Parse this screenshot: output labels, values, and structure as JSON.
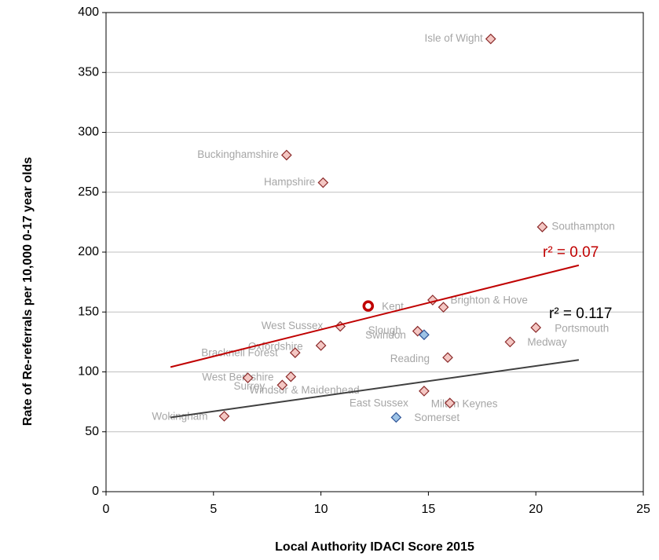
{
  "chart_data": {
    "type": "scatter",
    "xlabel": "Local Authority IDACI Score 2015",
    "ylabel": "Rate of Re-referrals per 10,000 0-17 year olds",
    "xlim": [
      0,
      25
    ],
    "xticks": [
      0,
      5,
      10,
      15,
      20,
      25
    ],
    "ylim": [
      0,
      400
    ],
    "yticks": [
      0,
      50,
      100,
      150,
      200,
      250,
      300,
      350,
      400
    ],
    "grid": true,
    "series": [
      {
        "marker": "diamond",
        "color": "#f4c7c3",
        "edge": "#8b2a2a",
        "labels": [
          "Isle of Wight",
          "Buckinghamshire",
          "Hampshire",
          "Southampton",
          "Kent",
          "Brighton & Hove",
          "West Sussex",
          "Slough",
          "Portsmouth",
          "Oxfordshire",
          "Bracknell Forest",
          "Medway",
          "Reading",
          "West Berkshire",
          "Surrey",
          "Windsor & Maidenhead",
          "East Sussex",
          "Milton Keynes",
          "Wokingham"
        ],
        "x": [
          17.9,
          8.4,
          10.1,
          20.3,
          15.2,
          15.7,
          10.9,
          14.5,
          20.0,
          10.0,
          8.8,
          18.8,
          15.9,
          6.6,
          8.6,
          8.2,
          14.8,
          16.0,
          5.5
        ],
        "values": [
          378,
          281,
          258,
          221,
          160,
          154,
          138,
          134,
          137,
          122,
          116,
          125,
          112,
          95,
          96,
          89,
          84,
          74,
          63
        ]
      },
      {
        "marker": "diamond",
        "color": "#9dc3e6",
        "edge": "#2f5597",
        "labels": [
          "Swindon",
          "Somerset"
        ],
        "x": [
          14.8,
          13.5
        ],
        "values": [
          131,
          62
        ]
      },
      {
        "marker": "circle",
        "color": "#c00000",
        "x": [
          12.2
        ],
        "values": [
          155
        ]
      },
      {
        "line": true,
        "color": "#c00000",
        "x": [
          3,
          22
        ],
        "values": [
          104,
          189
        ]
      },
      {
        "line": true,
        "color": "#404040",
        "x": [
          3,
          22
        ],
        "values": [
          62,
          110
        ]
      }
    ],
    "annotations": [
      {
        "text": "r² = 0.07",
        "color": "#c00000"
      },
      {
        "text": "r² = 0.117",
        "color": "#000000"
      }
    ]
  }
}
